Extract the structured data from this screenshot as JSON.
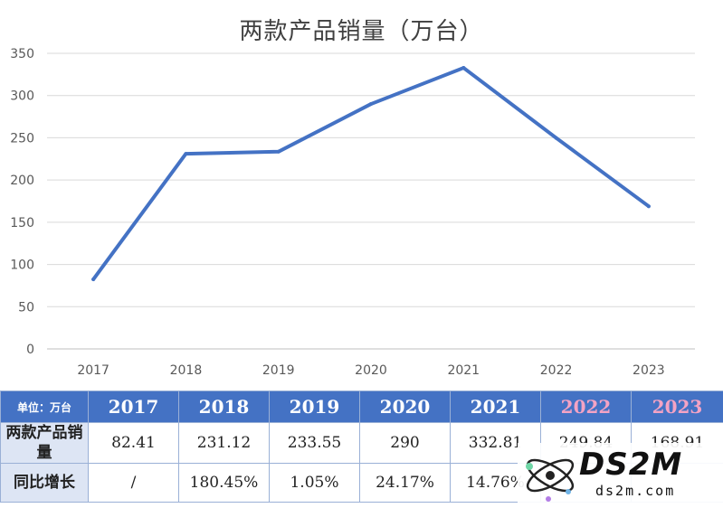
{
  "chart_data": {
    "type": "line",
    "title": "两款产品销量（万台）",
    "x": [
      "2017",
      "2018",
      "2019",
      "2020",
      "2021",
      "2022",
      "2023"
    ],
    "series": [
      {
        "values": [
          82.41,
          231.12,
          233.55,
          290,
          332.81,
          249.84,
          168.91
        ]
      }
    ],
    "y_ticks": [
      "0",
      "50",
      "100",
      "150",
      "200",
      "250",
      "300",
      "350"
    ],
    "ylim": [
      0,
      350
    ],
    "grid": true,
    "line_color": "#4472c4"
  },
  "table": {
    "unit_label": "单位：万台",
    "years": [
      "2017",
      "2018",
      "2019",
      "2020",
      "2021",
      "2022",
      "2023"
    ],
    "rows": [
      {
        "label": "两款产品销量",
        "cells": [
          "82.41",
          "231.12",
          "233.55",
          "290",
          "332.81",
          "249.84",
          "168.91"
        ]
      },
      {
        "label": "同比增长",
        "cells": [
          "/",
          "180.45%",
          "1.05%",
          "24.17%",
          "14.76%",
          "",
          ""
        ]
      }
    ]
  },
  "watermark": {
    "logo_text": "DS2M",
    "site_text": "ds2m.com"
  }
}
